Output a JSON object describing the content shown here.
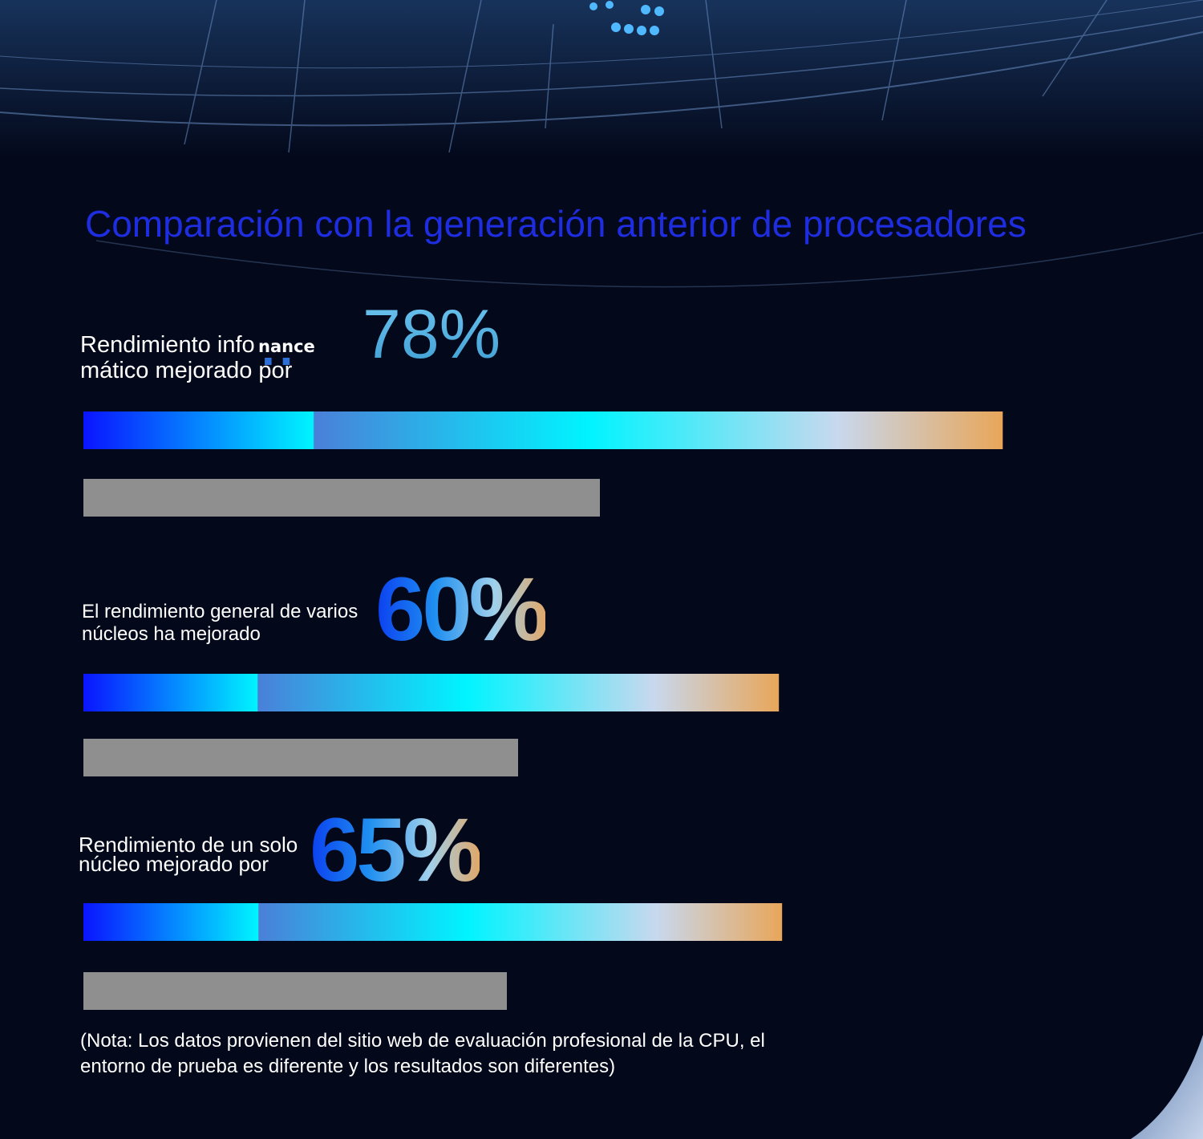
{
  "title": "Comparación con la generación anterior de procesadores",
  "colors": {
    "title": "#1f2de0",
    "previous_bar": "#8f8f8f",
    "bar_gradient": [
      "#0a14ff",
      "#00f4ff",
      "#e8a65a"
    ]
  },
  "chart_data": {
    "type": "bar",
    "orientation": "horizontal",
    "title": "Comparación con la generación anterior de procesadores",
    "groups": [
      {
        "label": "Rendimiento informático mejorado por",
        "label_lines": "Rendimiento info\nmático mejorado por",
        "overlay_text": "nance",
        "improvement_text": "78%",
        "improvement": 78,
        "new_gen": 1.78,
        "previous_gen": 1.0
      },
      {
        "label": "El rendimiento general de varios núcleos ha mejorado",
        "label_lines": "El rendimiento general de varios\nnúcleos ha mejorado",
        "improvement_text": "60%",
        "improvement": 60,
        "new_gen": 1.6,
        "previous_gen": 1.0
      },
      {
        "label": "Rendimiento de un solo núcleo mejorado por",
        "label_lines": "Rendimiento de un solo\nnúcleo mejorado por",
        "improvement_text": "65%",
        "improvement": 65,
        "new_gen": 1.65,
        "previous_gen": 1.0
      }
    ],
    "grid": false,
    "legend": "none"
  },
  "note": "(Nota: Los datos provienen del sitio web de evaluación profesional de la CPU, el entorno de prueba es diferente y los resultados son diferentes)"
}
